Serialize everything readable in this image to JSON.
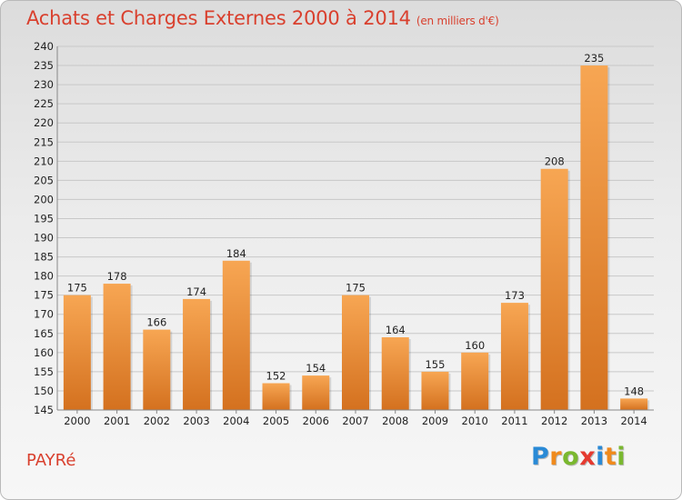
{
  "title": "Achats et Charges Externes 2000 à 2014",
  "subtitle": "(en milliers d'€)",
  "commune": "PAYRé",
  "logo": {
    "letters": [
      "P",
      "r",
      "o",
      "x",
      "i",
      "t",
      "i"
    ],
    "colors": [
      "#2a8ad6",
      "#f08a1c",
      "#7ab82f",
      "#e53a30",
      "#2a8ad6",
      "#f08a1c",
      "#7ab82f"
    ]
  },
  "colors": {
    "bar_top": "#f7a653",
    "bar_bottom": "#d4711f",
    "title": "#d9402e"
  },
  "chart_data": {
    "type": "bar",
    "title": "Achats et Charges Externes 2000 à 2014",
    "subtitle": "(en milliers d'€)",
    "categories": [
      "2000",
      "2001",
      "2002",
      "2003",
      "2004",
      "2005",
      "2006",
      "2007",
      "2008",
      "2009",
      "2010",
      "2011",
      "2012",
      "2013",
      "2014"
    ],
    "values": [
      175,
      178,
      166,
      174,
      184,
      152,
      154,
      175,
      164,
      155,
      160,
      173,
      208,
      235,
      148
    ],
    "ylim": [
      145,
      240
    ],
    "ytick_step": 5,
    "grid": true,
    "xlabel": "",
    "ylabel": ""
  }
}
